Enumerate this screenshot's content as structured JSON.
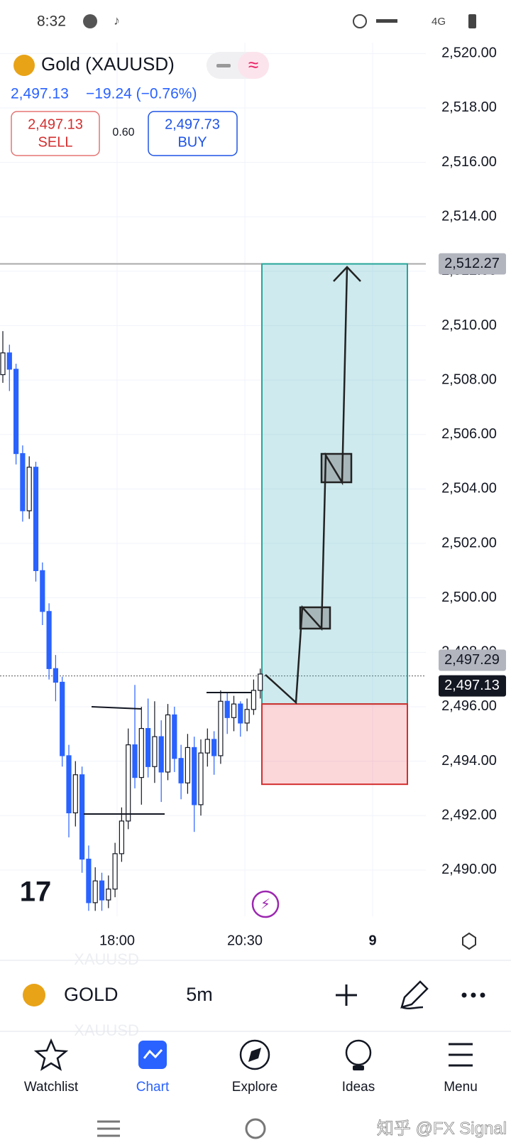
{
  "status_bar": {
    "time": "8:32",
    "network": "4G"
  },
  "header": {
    "symbol": "Gold (XAUUSD)",
    "price": "2,497.13",
    "change": "−19.24 (−0.76%)",
    "sell": {
      "price": "2,497.13",
      "label": "SELL"
    },
    "spread": "0.60",
    "buy": {
      "price": "2,497.73",
      "label": "BUY"
    }
  },
  "chart_data": {
    "type": "candlestick",
    "open": [
      2508.2,
      2509.0,
      2508.4,
      2505.3,
      2503.2,
      2504.8,
      2501.0,
      2499.5,
      2497.4,
      2496.9,
      2494.2,
      2492.1,
      2493.5,
      2490.4,
      2488.8,
      2489.6,
      2488.9,
      2489.3,
      2490.6,
      2491.8,
      2494.6,
      2493.4,
      2495.2,
      2493.8,
      2494.9,
      2493.6,
      2495.7,
      2494.1,
      2493.2,
      2494.5,
      2492.4,
      2494.3,
      2494.8,
      2494.2,
      2496.2,
      2495.6,
      2496.1,
      2495.4,
      2495.9,
      2496.6
    ],
    "high": [
      2509.8,
      2509.3,
      2508.6,
      2505.6,
      2505.2,
      2505.0,
      2501.3,
      2499.8,
      2497.9,
      2497.1,
      2494.6,
      2494.0,
      2493.8,
      2490.9,
      2490.1,
      2489.9,
      2489.8,
      2491.0,
      2492.3,
      2495.2,
      2496.8,
      2496.0,
      2496.3,
      2496.2,
      2495.5,
      2496.1,
      2496.0,
      2494.6,
      2495.0,
      2494.9,
      2494.8,
      2495.2,
      2495.1,
      2496.6,
      2496.5,
      2496.4,
      2496.2,
      2496.3,
      2497.0,
      2497.4
    ],
    "low": [
      2507.9,
      2507.6,
      2504.9,
      2502.8,
      2502.9,
      2500.6,
      2499.0,
      2497.0,
      2496.2,
      2493.8,
      2491.2,
      2491.6,
      2489.9,
      2488.5,
      2488.5,
      2488.5,
      2488.6,
      2489.0,
      2490.3,
      2491.5,
      2493.0,
      2492.4,
      2493.4,
      2493.2,
      2492.5,
      2493.3,
      2493.6,
      2492.6,
      2492.8,
      2491.4,
      2492.0,
      2493.8,
      2493.5,
      2493.9,
      2495.0,
      2495.1,
      2494.9,
      2495.1,
      2495.7,
      2496.3
    ],
    "close": [
      2509.0,
      2508.4,
      2505.3,
      2503.2,
      2504.8,
      2501.0,
      2499.5,
      2497.4,
      2496.9,
      2494.2,
      2492.1,
      2493.5,
      2490.4,
      2488.8,
      2489.6,
      2488.9,
      2489.3,
      2490.6,
      2491.8,
      2494.6,
      2493.4,
      2495.2,
      2493.8,
      2494.9,
      2493.6,
      2495.7,
      2494.1,
      2493.2,
      2494.5,
      2492.4,
      2494.3,
      2494.8,
      2494.2,
      2496.2,
      2495.6,
      2496.1,
      2495.4,
      2495.9,
      2496.6,
      2497.2
    ],
    "up_color": "#ffffff",
    "down_color": "#2962ff",
    "ylim": [
      2488.3,
      2520.4
    ],
    "yticks": [
      {
        "value": 2490,
        "label": "2,490.00"
      },
      {
        "value": 2492,
        "label": "2,492.00"
      },
      {
        "value": 2494,
        "label": "2,494.00"
      },
      {
        "value": 2496,
        "label": "2,496.00"
      },
      {
        "value": 2498,
        "label": "2,498.00"
      },
      {
        "value": 2500,
        "label": "2,500.00"
      },
      {
        "value": 2502,
        "label": "2,502.00"
      },
      {
        "value": 2504,
        "label": "2,504.00"
      },
      {
        "value": 2506,
        "label": "2,506.00"
      },
      {
        "value": 2508,
        "label": "2,508.00"
      },
      {
        "value": 2510,
        "label": "2,510.00"
      },
      {
        "value": 2512,
        "label": "2,512.00"
      },
      {
        "value": 2514,
        "label": "2,514.00"
      },
      {
        "value": 2516,
        "label": "2,516.00"
      },
      {
        "value": 2518,
        "label": "2,518.00"
      },
      {
        "value": 2520,
        "label": "2,520.00"
      }
    ],
    "time_labels": [
      "18:00",
      "20:30",
      "9"
    ],
    "grid": true,
    "price_tags": [
      {
        "value": 2512.27,
        "label": "2,512.27",
        "color": "#b2b5be"
      },
      {
        "value": 2497.29,
        "label": "2,497.29",
        "color": "#b2b5be"
      },
      {
        "value": 2497.13,
        "label": "2,497.13",
        "color": "#131722"
      }
    ],
    "position": {
      "target": 2512.27,
      "entry": 2496.1,
      "stop": 2493.15
    }
  },
  "toolbar": {
    "symbol": "GOLD",
    "interval": "5m",
    "ghost": "XAUUSD"
  },
  "nav": [
    "Watchlist",
    "Chart",
    "Explore",
    "Ideas",
    "Menu"
  ],
  "watermark": "知乎 @FX Signal"
}
